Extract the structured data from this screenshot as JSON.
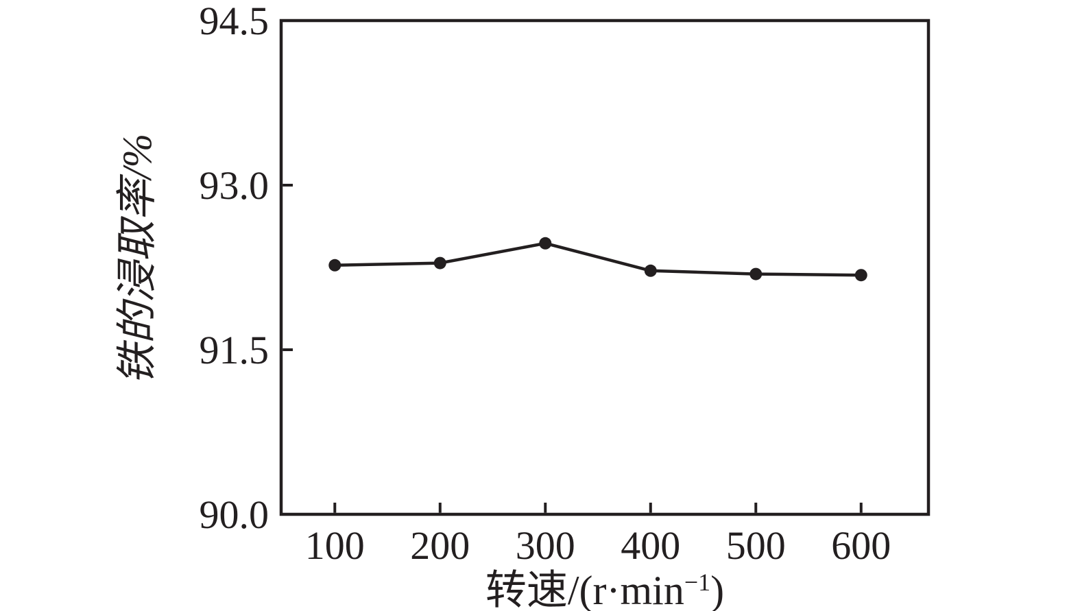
{
  "chart_data": {
    "type": "line",
    "title": "",
    "xlabel": "转速/(r·min−1)",
    "ylabel": "铁的浸取率/%",
    "x": [
      100,
      200,
      300,
      400,
      500,
      600
    ],
    "series": [
      {
        "name": "铁的浸取率",
        "values": [
          92.27,
          92.29,
          92.47,
          92.22,
          92.19,
          92.18
        ]
      }
    ],
    "xlim": [
      49,
      664
    ],
    "ylim": [
      90.0,
      94.5
    ],
    "x_ticks": [
      100,
      200,
      300,
      400,
      500,
      600
    ],
    "x_tick_labels": [
      "100",
      "200",
      "300",
      "400",
      "500",
      "600"
    ],
    "y_ticks": [
      90.0,
      91.5,
      93.0,
      94.5
    ],
    "y_tick_labels": [
      "90.0",
      "91.5",
      "93.0",
      "94.5"
    ],
    "grid": false,
    "legend": "none",
    "marker": "filled-circle",
    "line_color": "#231f20",
    "marker_color": "#231f20",
    "axis_color": "#231f20"
  },
  "labels": {
    "y_title": "铁的浸取率/%",
    "x_title_prefix": "转速/(r·min",
    "x_title_sup": "−1",
    "x_title_suffix": ")"
  }
}
